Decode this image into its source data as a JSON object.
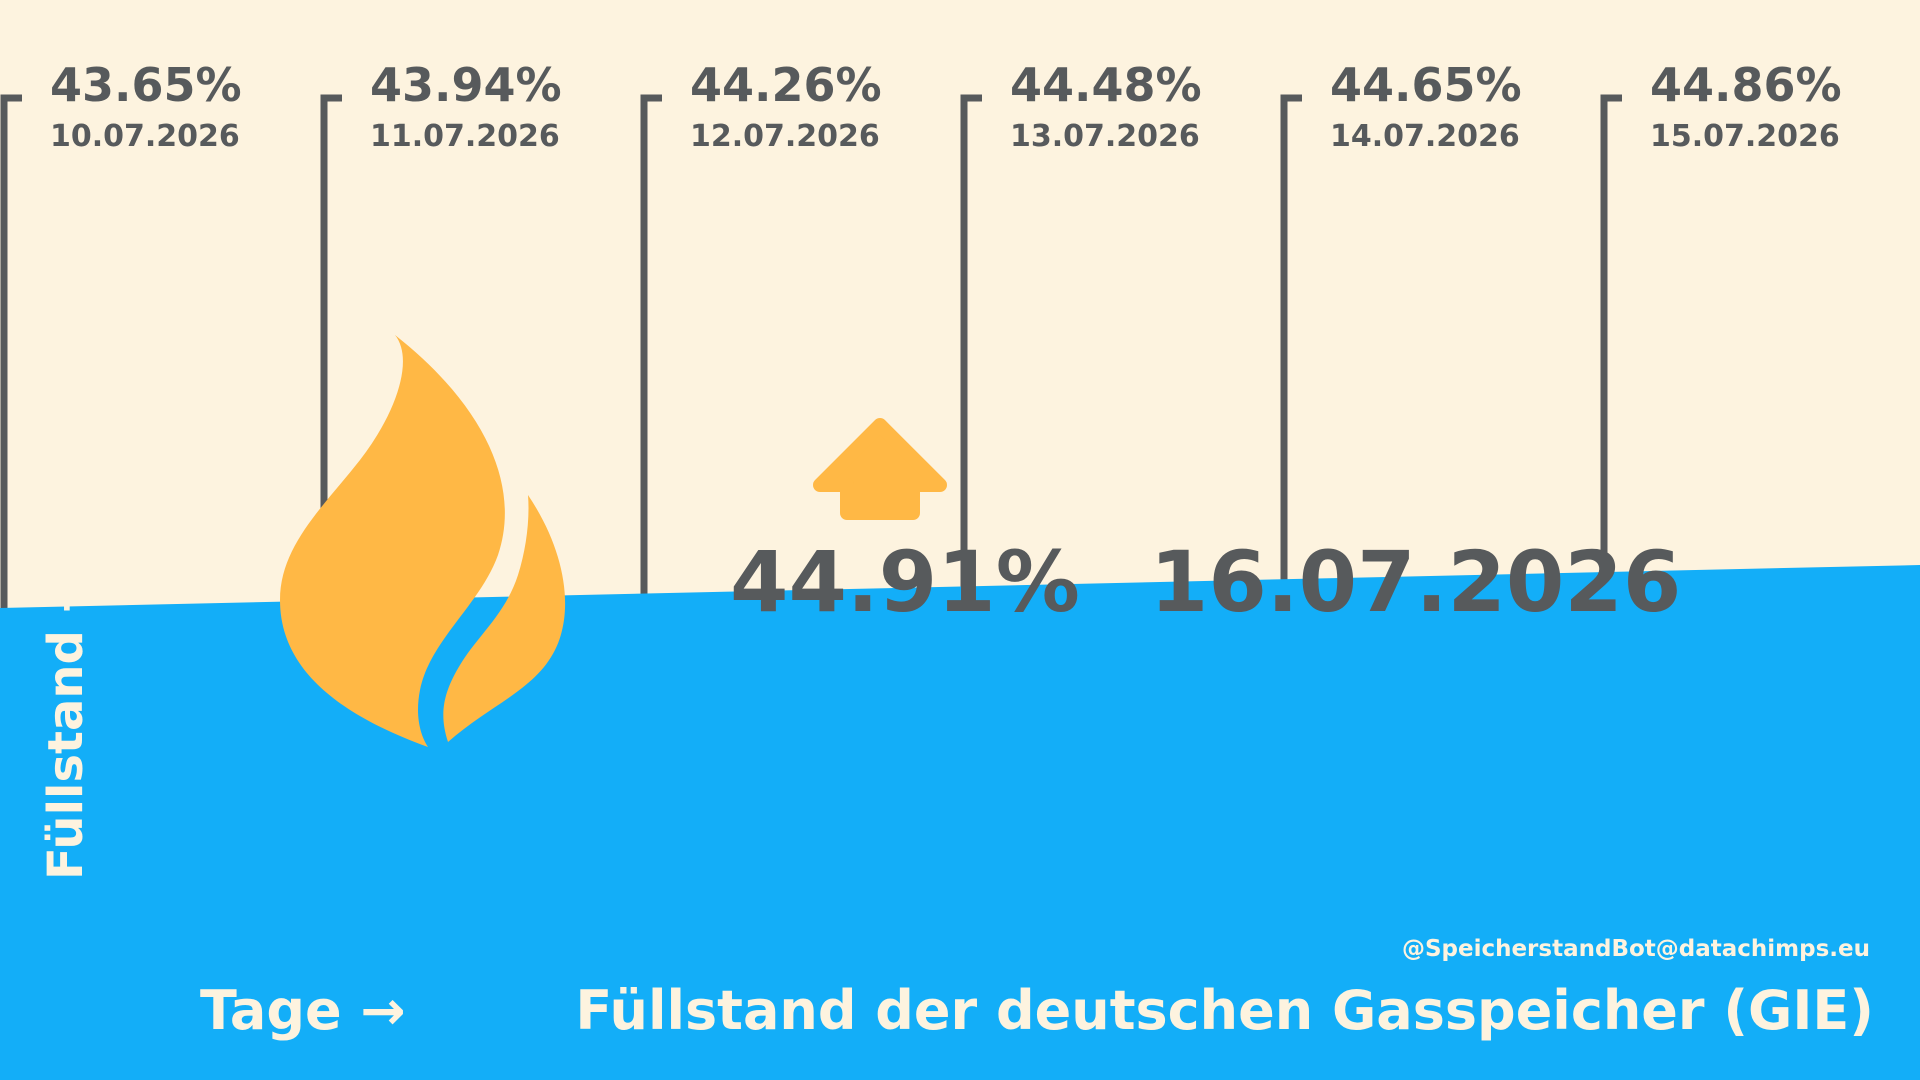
{
  "colors": {
    "background": "#FDF3DF",
    "water": "#13AEF8",
    "flame": "#FFB845",
    "text": "#575A5C",
    "light_text": "#FDF3DF"
  },
  "icons": {
    "flame": "flame-icon",
    "arrow": "up-arrow-icon"
  },
  "chart_data": {
    "type": "line",
    "title": "Füllstand der deutschen Gasspeicher (GIE)",
    "xlabel": "Tage →",
    "ylabel": "Füllstand →",
    "credit": "@SpeicherstandBot@datachimps.eu",
    "x": [
      "10.07.2026",
      "11.07.2026",
      "12.07.2026",
      "13.07.2026",
      "14.07.2026",
      "15.07.2026",
      "16.07.2026"
    ],
    "value_labels": [
      "43.65%",
      "43.94%",
      "44.26%",
      "44.48%",
      "44.65%",
      "44.86%",
      "44.91%"
    ],
    "values": [
      43.65,
      43.94,
      44.26,
      44.48,
      44.65,
      44.86,
      44.91
    ],
    "unit": "%",
    "trend": "up",
    "current": {
      "value": "44.91%",
      "date": "16.07.2026"
    },
    "grid": false,
    "legend": "none"
  }
}
